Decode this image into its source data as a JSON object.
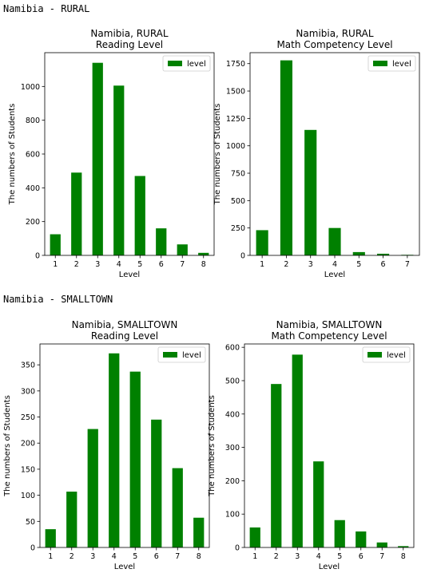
{
  "sections": [
    {
      "header": "Namibia - RURAL"
    },
    {
      "header": "Namibia - SMALLTOWN"
    }
  ],
  "colors": {
    "bar": "#008000"
  },
  "chart_data": [
    {
      "type": "bar",
      "title": "Namibia, RURAL\nReading Level",
      "xlabel": "Level",
      "ylabel": "The numbers of Students",
      "categories": [
        "1",
        "2",
        "3",
        "4",
        "5",
        "6",
        "7",
        "8"
      ],
      "series": [
        {
          "name": "level",
          "values": [
            125,
            490,
            1140,
            1005,
            470,
            160,
            65,
            15
          ]
        }
      ],
      "ylim": [
        0,
        1200
      ],
      "yticks": [
        0,
        200,
        400,
        600,
        800,
        1000
      ],
      "legend": "top-right",
      "grid": false
    },
    {
      "type": "bar",
      "title": "Namibia, RURAL\nMath Competency Level",
      "xlabel": "Level",
      "ylabel": "The numbers of Students",
      "categories": [
        "1",
        "2",
        "3",
        "4",
        "5",
        "6",
        "7"
      ],
      "series": [
        {
          "name": "level",
          "values": [
            230,
            1780,
            1145,
            250,
            30,
            15,
            5
          ]
        }
      ],
      "ylim": [
        0,
        1850
      ],
      "yticks": [
        0,
        250,
        500,
        750,
        1000,
        1250,
        1500,
        1750
      ],
      "legend": "top-right",
      "grid": false
    },
    {
      "type": "bar",
      "title": "Namibia, SMALLTOWN\nReading Level",
      "xlabel": "Level",
      "ylabel": "The numbers of Students",
      "categories": [
        "1",
        "2",
        "3",
        "4",
        "5",
        "6",
        "7",
        "8"
      ],
      "series": [
        {
          "name": "level",
          "values": [
            35,
            107,
            227,
            372,
            337,
            245,
            152,
            57
          ]
        }
      ],
      "ylim": [
        0,
        390
      ],
      "yticks": [
        0,
        50,
        100,
        150,
        200,
        250,
        300,
        350
      ],
      "legend": "top-right",
      "grid": false
    },
    {
      "type": "bar",
      "title": "Namibia, SMALLTOWN\nMath Competency Level",
      "xlabel": "Level",
      "ylabel": "The numbers of Students",
      "categories": [
        "1",
        "2",
        "3",
        "4",
        "5",
        "6",
        "7",
        "8"
      ],
      "series": [
        {
          "name": "level",
          "values": [
            60,
            490,
            578,
            258,
            82,
            48,
            15,
            4
          ]
        }
      ],
      "ylim": [
        0,
        610
      ],
      "yticks": [
        0,
        100,
        200,
        300,
        400,
        500,
        600
      ],
      "legend": "top-right",
      "grid": false
    }
  ]
}
